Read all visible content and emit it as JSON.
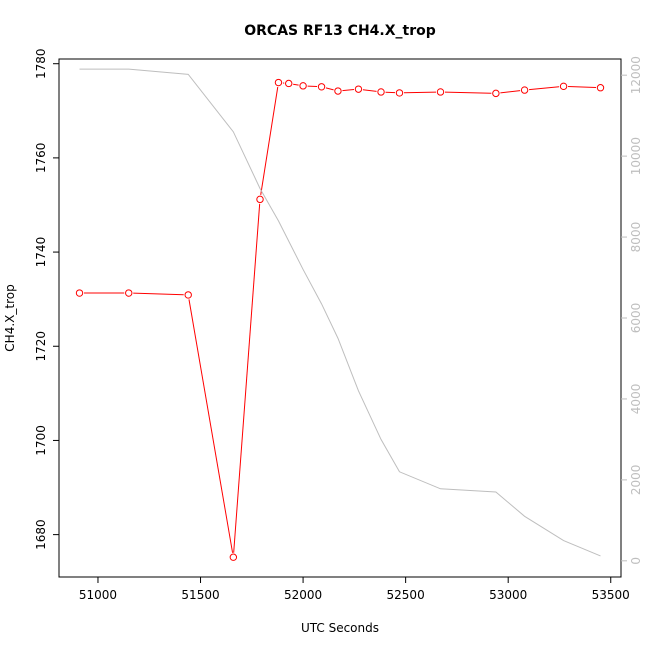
{
  "chart_data": {
    "type": "line",
    "title": "ORCAS RF13 CH4.X_trop",
    "xlabel": "UTC Seconds",
    "ylabel": "CH4.X_trop",
    "xlim": [
      50810,
      53550
    ],
    "ylim": [
      1671,
      1781
    ],
    "y2lim": [
      -400,
      12400
    ],
    "x_ticks": [
      51000,
      51500,
      52000,
      52500,
      53000,
      53500
    ],
    "y_ticks": [
      1680,
      1700,
      1720,
      1740,
      1760,
      1780
    ],
    "y2_ticks": [
      0,
      2000,
      4000,
      6000,
      8000,
      10000,
      12000
    ],
    "grid": false,
    "series": [
      {
        "axis": "left",
        "color": "#ff0000",
        "style": "line+open-circle",
        "x": [
          50910,
          51150,
          51440,
          51660,
          51790,
          51880,
          51930,
          52000,
          52090,
          52170,
          52270,
          52380,
          52470,
          52670,
          52940,
          53080,
          53270,
          53450
        ],
        "y": [
          1731.3,
          1731.3,
          1730.9,
          1675.2,
          1751.2,
          1776.0,
          1775.8,
          1775.3,
          1775.1,
          1774.2,
          1774.6,
          1774.0,
          1773.8,
          1774.0,
          1773.7,
          1774.4,
          1775.2,
          1774.9
        ]
      },
      {
        "axis": "right",
        "color": "#bebebe",
        "style": "line",
        "x": [
          50910,
          51150,
          51440,
          51660,
          51790,
          51880,
          51930,
          52000,
          52090,
          52170,
          52270,
          52380,
          52470,
          52670,
          52940,
          53080,
          53270,
          53450
        ],
        "y": [
          12150,
          12150,
          12020,
          10600,
          9200,
          8400,
          7900,
          7200,
          6350,
          5500,
          4200,
          3000,
          2200,
          1780,
          1700,
          1100,
          500,
          120
        ]
      }
    ]
  }
}
